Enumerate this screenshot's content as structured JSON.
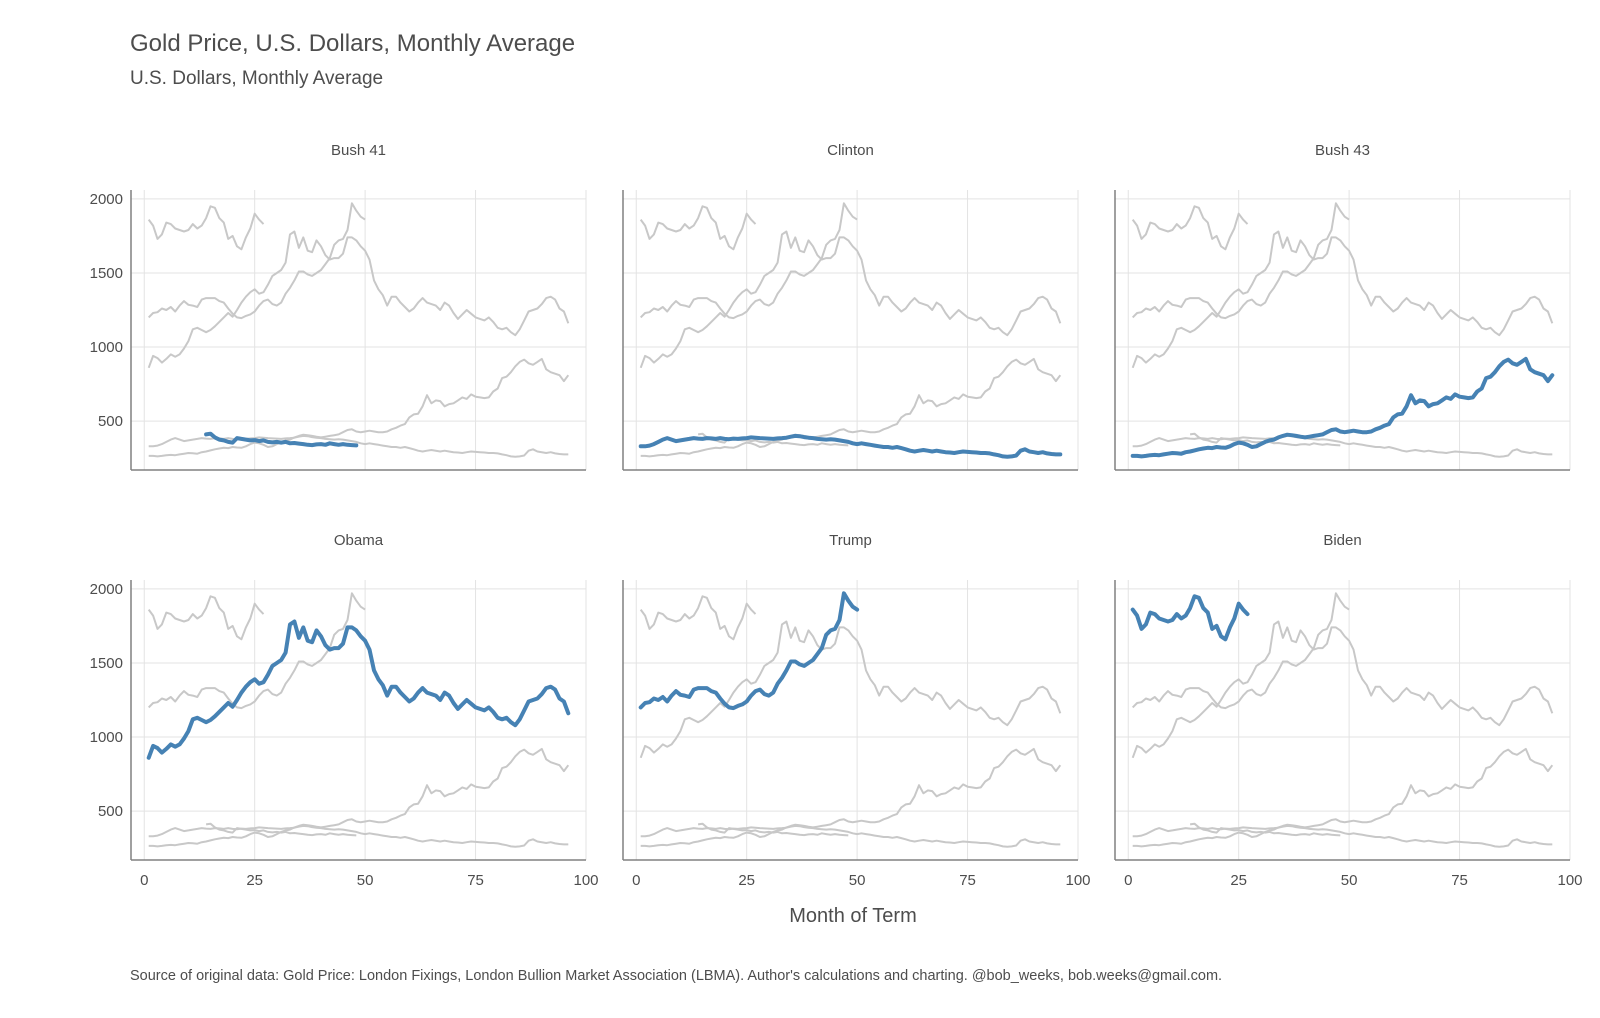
{
  "chart_data": {
    "type": "line",
    "title": "Gold Price, U.S. Dollars, Monthly Average",
    "subtitle": "U.S. Dollars, Monthly Average",
    "xlabel": "Month of Term",
    "ylabel": "",
    "caption": "Source of original data: Gold Price: London Fixings, London Bullion Market Association (LBMA). Author's calculations and charting. @bob_weeks, bob.weeks@gmail.com.",
    "xlim": [
      -3,
      100
    ],
    "ylim": [
      170,
      2060
    ],
    "x_ticks": [
      0,
      25,
      50,
      75,
      100
    ],
    "y_ticks": [
      500,
      1000,
      1500,
      2000
    ],
    "grid": true,
    "legend": "none",
    "facets": [
      "Bush 41",
      "Clinton",
      "Bush 43",
      "Obama",
      "Trump",
      "Biden"
    ],
    "highlight_color": "#4682b4",
    "context_color": "#c8c8c8",
    "series": [
      {
        "name": "Bush 41",
        "x_start": 14,
        "values": [
          410,
          415,
          390,
          375,
          370,
          360,
          355,
          385,
          380,
          375,
          370,
          372,
          365,
          370,
          360,
          356,
          360,
          355,
          360,
          350,
          352,
          348,
          345,
          340,
          338,
          343,
          345,
          340,
          350,
          345,
          340,
          345,
          340,
          338,
          336
        ]
      },
      {
        "name": "Clinton",
        "x_start": 1,
        "values": [
          330,
          330,
          335,
          345,
          360,
          375,
          385,
          375,
          365,
          370,
          375,
          380,
          385,
          382,
          380,
          385,
          383,
          380,
          385,
          380,
          378,
          382,
          380,
          383,
          385,
          390,
          388,
          385,
          383,
          382,
          380,
          383,
          385,
          388,
          395,
          400,
          398,
          392,
          388,
          385,
          380,
          378,
          375,
          378,
          375,
          370,
          365,
          360,
          350,
          345,
          350,
          345,
          340,
          335,
          330,
          325,
          325,
          320,
          325,
          318,
          310,
          300,
          295,
          300,
          305,
          300,
          295,
          300,
          295,
          290,
          288,
          285,
          290,
          295,
          292,
          290,
          288,
          285,
          285,
          282,
          275,
          270,
          262,
          260,
          262,
          268,
          300,
          310,
          295,
          290,
          285,
          290,
          282,
          278,
          275,
          275
        ]
      },
      {
        "name": "Bush 43",
        "x_start": 1,
        "values": [
          265,
          265,
          262,
          265,
          270,
          272,
          270,
          275,
          280,
          285,
          283,
          280,
          290,
          295,
          302,
          310,
          315,
          320,
          318,
          325,
          322,
          320,
          330,
          345,
          355,
          350,
          340,
          325,
          330,
          345,
          360,
          370,
          375,
          390,
          400,
          408,
          405,
          400,
          395,
          390,
          395,
          400,
          405,
          410,
          425,
          440,
          445,
          430,
          425,
          430,
          435,
          430,
          425,
          425,
          430,
          445,
          455,
          470,
          480,
          525,
          545,
          550,
          600,
          675,
          620,
          640,
          635,
          600,
          615,
          620,
          640,
          660,
          650,
          680,
          665,
          660,
          655,
          660,
          700,
          720,
          790,
          800,
          830,
          870,
          900,
          915,
          890,
          880,
          900,
          920,
          850,
          830,
          820,
          810,
          770,
          810
        ]
      },
      {
        "name": "Obama",
        "x_start": 1,
        "values": [
          860,
          940,
          925,
          895,
          920,
          950,
          935,
          950,
          990,
          1040,
          1120,
          1130,
          1115,
          1100,
          1115,
          1140,
          1170,
          1200,
          1230,
          1205,
          1250,
          1300,
          1340,
          1370,
          1390,
          1360,
          1370,
          1420,
          1480,
          1500,
          1520,
          1570,
          1760,
          1780,
          1670,
          1740,
          1650,
          1640,
          1720,
          1680,
          1620,
          1590,
          1600,
          1600,
          1630,
          1740,
          1740,
          1720,
          1680,
          1650,
          1590,
          1450,
          1390,
          1350,
          1280,
          1340,
          1340,
          1300,
          1270,
          1240,
          1260,
          1300,
          1330,
          1300,
          1290,
          1280,
          1250,
          1300,
          1280,
          1230,
          1190,
          1220,
          1250,
          1225,
          1200,
          1190,
          1180,
          1200,
          1170,
          1130,
          1120,
          1130,
          1100,
          1080,
          1120,
          1180,
          1240,
          1250,
          1260,
          1290,
          1330,
          1340,
          1320,
          1260,
          1240,
          1160
        ]
      },
      {
        "name": "Trump",
        "x_start": 1,
        "values": [
          1200,
          1230,
          1235,
          1260,
          1250,
          1270,
          1240,
          1280,
          1310,
          1285,
          1280,
          1270,
          1320,
          1330,
          1330,
          1330,
          1310,
          1300,
          1260,
          1225,
          1200,
          1195,
          1210,
          1220,
          1240,
          1280,
          1310,
          1320,
          1290,
          1280,
          1300,
          1360,
          1400,
          1450,
          1510,
          1510,
          1490,
          1480,
          1500,
          1520,
          1560,
          1600,
          1690,
          1720,
          1730,
          1790,
          1970,
          1920,
          1880,
          1860
        ]
      },
      {
        "name": "Biden",
        "x_start": 1,
        "values": [
          1860,
          1820,
          1730,
          1760,
          1840,
          1830,
          1800,
          1790,
          1780,
          1790,
          1830,
          1800,
          1820,
          1870,
          1950,
          1940,
          1870,
          1840,
          1730,
          1750,
          1680,
          1660,
          1740,
          1800,
          1900,
          1860,
          1830
        ]
      }
    ]
  }
}
